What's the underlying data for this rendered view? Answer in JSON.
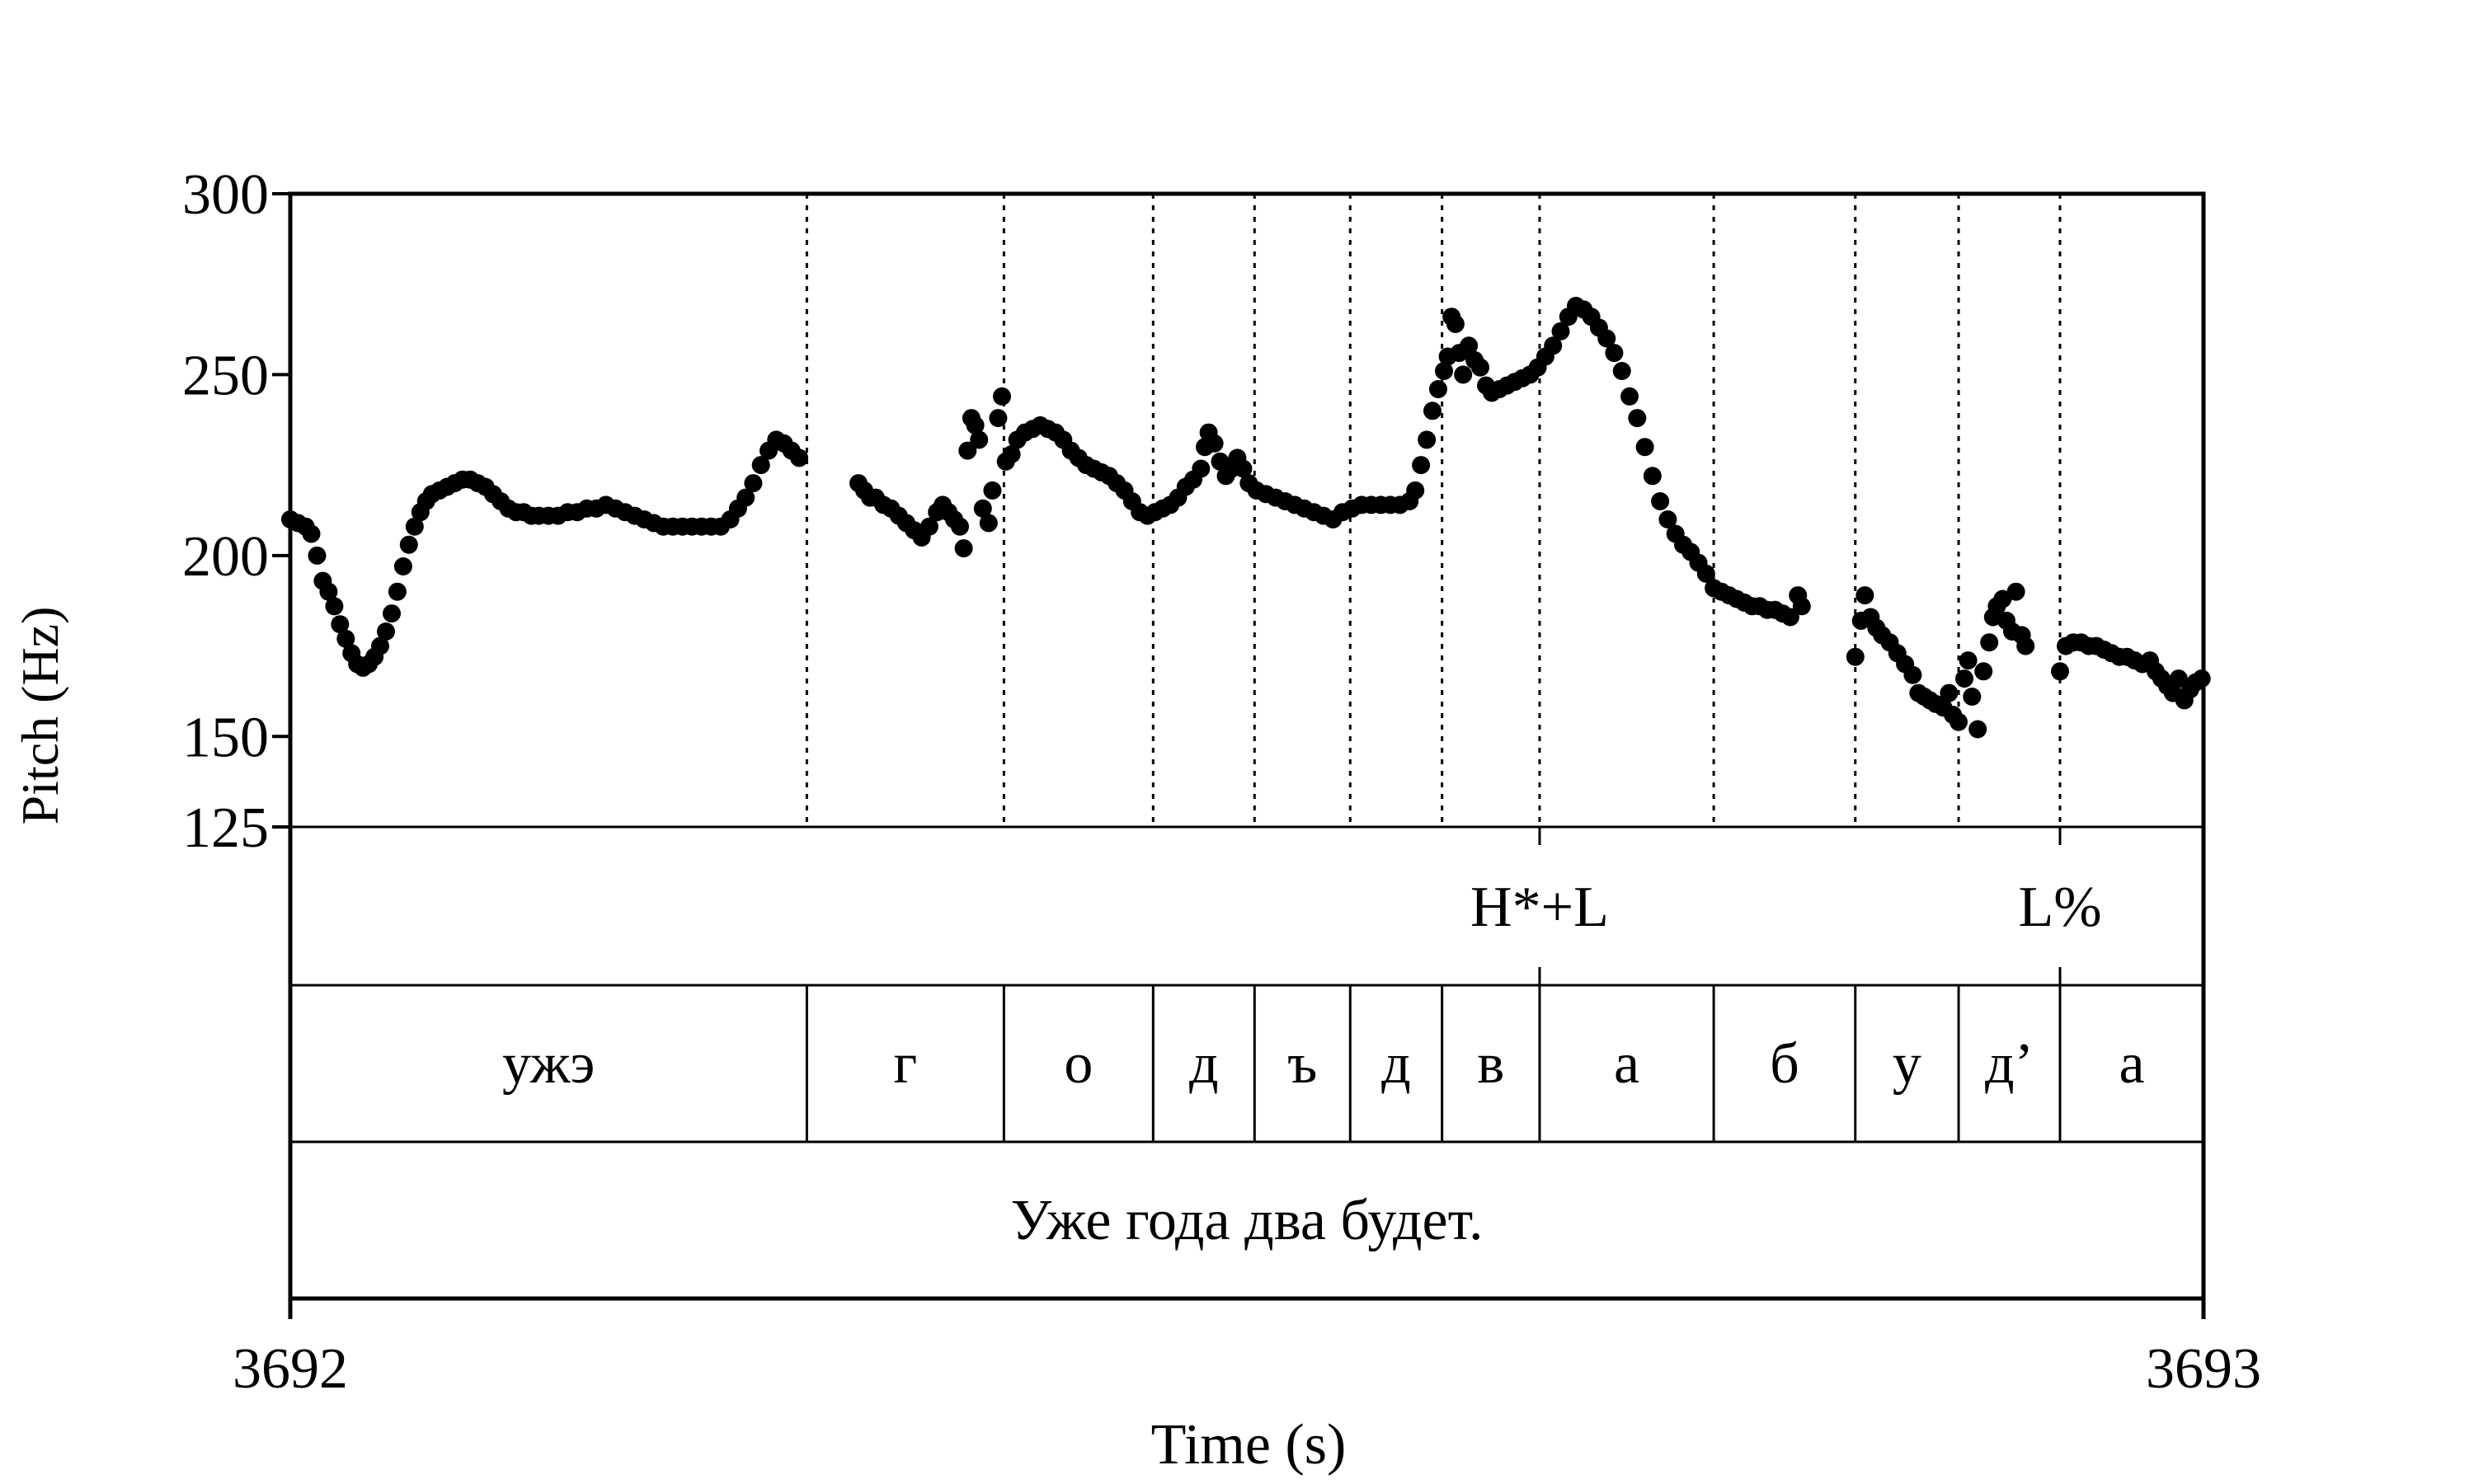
{
  "chart_data": {
    "type": "scatter",
    "title": "",
    "xlabel": "Time (s)",
    "ylabel": "Pitch (Hz)",
    "xlim": [
      3692,
      3693
    ],
    "ylim": [
      125,
      300
    ],
    "x_tick_labels": [
      "3692",
      "3693"
    ],
    "y_ticks": [
      125,
      150,
      200,
      250,
      300
    ],
    "y_tick_labels": [
      "125",
      "150",
      "200",
      "250",
      "300"
    ],
    "grid": false,
    "boundaries": [
      3692.27,
      3692.373,
      3692.451,
      3692.504,
      3692.554,
      3692.602,
      3692.653,
      3692.744,
      3692.818,
      3692.872,
      3692.925
    ],
    "tone_tier": [
      {
        "label": "H*+L",
        "time": 3692.653
      },
      {
        "label": "L%",
        "time": 3692.925
      }
    ],
    "segment_tier": [
      {
        "label": "ужэ",
        "start": 3692.0,
        "end": 3692.27
      },
      {
        "label": "г",
        "start": 3692.27,
        "end": 3692.373
      },
      {
        "label": "о",
        "start": 3692.373,
        "end": 3692.451
      },
      {
        "label": "д",
        "start": 3692.451,
        "end": 3692.504
      },
      {
        "label": "ъ",
        "start": 3692.504,
        "end": 3692.554
      },
      {
        "label": "д",
        "start": 3692.554,
        "end": 3692.602
      },
      {
        "label": "в",
        "start": 3692.602,
        "end": 3692.653
      },
      {
        "label": "а",
        "start": 3692.653,
        "end": 3692.744
      },
      {
        "label": "б",
        "start": 3692.744,
        "end": 3692.818
      },
      {
        "label": "у",
        "start": 3692.818,
        "end": 3692.872
      },
      {
        "label": "д’",
        "start": 3692.872,
        "end": 3692.925
      },
      {
        "label": "а",
        "start": 3692.925,
        "end": 3693.0
      }
    ],
    "sentence_tier": [
      {
        "label": "Уже года два будет.",
        "start": 3692.0,
        "end": 3693.0
      }
    ],
    "series": [
      {
        "values": [
          [
            3692.0,
            210
          ],
          [
            3692.004,
            209
          ],
          [
            3692.008,
            208
          ],
          [
            3692.011,
            206
          ],
          [
            3692.014,
            200
          ],
          [
            3692.017,
            193
          ],
          [
            3692.02,
            190
          ],
          [
            3692.023,
            186
          ],
          [
            3692.026,
            181
          ],
          [
            3692.029,
            177
          ],
          [
            3692.032,
            173
          ],
          [
            3692.035,
            170
          ],
          [
            3692.038,
            169
          ],
          [
            3692.041,
            170
          ],
          [
            3692.044,
            172
          ],
          [
            3692.047,
            175
          ],
          [
            3692.05,
            179
          ],
          [
            3692.053,
            184
          ],
          [
            3692.056,
            190
          ],
          [
            3692.059,
            197
          ],
          [
            3692.062,
            203
          ],
          [
            3692.065,
            208
          ],
          [
            3692.068,
            212
          ],
          [
            3692.071,
            215
          ],
          [
            3692.074,
            217
          ],
          [
            3692.078,
            218
          ],
          [
            3692.082,
            219
          ],
          [
            3692.086,
            220
          ],
          [
            3692.09,
            221
          ],
          [
            3692.094,
            221
          ],
          [
            3692.098,
            220
          ],
          [
            3692.102,
            219
          ],
          [
            3692.106,
            217
          ],
          [
            3692.11,
            215
          ],
          [
            3692.114,
            213
          ],
          [
            3692.118,
            212
          ],
          [
            3692.122,
            212
          ],
          [
            3692.126,
            211
          ],
          [
            3692.13,
            211
          ],
          [
            3692.135,
            211
          ],
          [
            3692.14,
            211
          ],
          [
            3692.145,
            212
          ],
          [
            3692.15,
            212
          ],
          [
            3692.155,
            213
          ],
          [
            3692.16,
            213
          ],
          [
            3692.165,
            214
          ],
          [
            3692.17,
            213
          ],
          [
            3692.175,
            212
          ],
          [
            3692.18,
            211
          ],
          [
            3692.185,
            210
          ],
          [
            3692.19,
            209
          ],
          [
            3692.195,
            208
          ],
          [
            3692.2,
            208
          ],
          [
            3692.205,
            208
          ],
          [
            3692.21,
            208
          ],
          [
            3692.215,
            208
          ],
          [
            3692.22,
            208
          ],
          [
            3692.225,
            208
          ],
          [
            3692.23,
            210
          ],
          [
            3692.234,
            213
          ],
          [
            3692.238,
            216
          ],
          [
            3692.242,
            220
          ],
          [
            3692.246,
            225
          ],
          [
            3692.25,
            229
          ],
          [
            3692.254,
            232
          ],
          [
            3692.258,
            231
          ],
          [
            3692.262,
            229
          ],
          [
            3692.266,
            227
          ],
          [
            3692.297,
            220
          ],
          [
            3692.3,
            218
          ],
          [
            3692.303,
            216
          ],
          [
            3692.306,
            216
          ],
          [
            3692.31,
            214
          ],
          [
            3692.314,
            213
          ],
          [
            3692.318,
            211
          ],
          [
            3692.322,
            209
          ],
          [
            3692.326,
            207
          ],
          [
            3692.33,
            205
          ],
          [
            3692.334,
            208
          ],
          [
            3692.338,
            212
          ],
          [
            3692.341,
            214
          ],
          [
            3692.344,
            212
          ],
          [
            3692.347,
            210
          ],
          [
            3692.35,
            208
          ],
          [
            3692.352,
            202
          ],
          [
            3692.354,
            229
          ],
          [
            3692.356,
            238
          ],
          [
            3692.358,
            236
          ],
          [
            3692.36,
            232
          ],
          [
            3692.362,
            213
          ],
          [
            3692.365,
            209
          ],
          [
            3692.367,
            218
          ],
          [
            3692.37,
            238
          ],
          [
            3692.372,
            244
          ],
          [
            3692.374,
            226
          ],
          [
            3692.377,
            228
          ],
          [
            3692.38,
            232
          ],
          [
            3692.384,
            234
          ],
          [
            3692.388,
            235
          ],
          [
            3692.392,
            236
          ],
          [
            3692.396,
            235
          ],
          [
            3692.4,
            234
          ],
          [
            3692.404,
            232
          ],
          [
            3692.408,
            229
          ],
          [
            3692.412,
            227
          ],
          [
            3692.416,
            225
          ],
          [
            3692.42,
            224
          ],
          [
            3692.424,
            223
          ],
          [
            3692.428,
            222
          ],
          [
            3692.432,
            220
          ],
          [
            3692.436,
            218
          ],
          [
            3692.44,
            215
          ],
          [
            3692.444,
            212
          ],
          [
            3692.448,
            211
          ],
          [
            3692.452,
            212
          ],
          [
            3692.456,
            213
          ],
          [
            3692.46,
            214
          ],
          [
            3692.464,
            216
          ],
          [
            3692.468,
            219
          ],
          [
            3692.472,
            221
          ],
          [
            3692.476,
            224
          ],
          [
            3692.478,
            230
          ],
          [
            3692.48,
            234
          ],
          [
            3692.483,
            231
          ],
          [
            3692.486,
            226
          ],
          [
            3692.489,
            222
          ],
          [
            3692.492,
            224
          ],
          [
            3692.495,
            227
          ],
          [
            3692.498,
            224
          ],
          [
            3692.501,
            220
          ],
          [
            3692.505,
            218
          ],
          [
            3692.51,
            217
          ],
          [
            3692.515,
            216
          ],
          [
            3692.52,
            215
          ],
          [
            3692.525,
            214
          ],
          [
            3692.53,
            213
          ],
          [
            3692.535,
            212
          ],
          [
            3692.54,
            211
          ],
          [
            3692.545,
            210
          ],
          [
            3692.55,
            212
          ],
          [
            3692.555,
            213
          ],
          [
            3692.56,
            214
          ],
          [
            3692.565,
            214
          ],
          [
            3692.57,
            214
          ],
          [
            3692.575,
            214
          ],
          [
            3692.58,
            214
          ],
          [
            3692.585,
            215
          ],
          [
            3692.588,
            218
          ],
          [
            3692.591,
            225
          ],
          [
            3692.594,
            232
          ],
          [
            3692.597,
            240
          ],
          [
            3692.6,
            246
          ],
          [
            3692.603,
            251
          ],
          [
            3692.605,
            255
          ],
          [
            3692.607,
            266
          ],
          [
            3692.609,
            264
          ],
          [
            3692.611,
            256
          ],
          [
            3692.613,
            250
          ],
          [
            3692.616,
            258
          ],
          [
            3692.619,
            254
          ],
          [
            3692.622,
            252
          ],
          [
            3692.625,
            247
          ],
          [
            3692.628,
            245
          ],
          [
            3692.632,
            246
          ],
          [
            3692.636,
            247
          ],
          [
            3692.64,
            248
          ],
          [
            3692.644,
            249
          ],
          [
            3692.648,
            250
          ],
          [
            3692.652,
            252
          ],
          [
            3692.656,
            255
          ],
          [
            3692.66,
            258
          ],
          [
            3692.664,
            262
          ],
          [
            3692.668,
            266
          ],
          [
            3692.672,
            269
          ],
          [
            3692.676,
            268
          ],
          [
            3692.68,
            266
          ],
          [
            3692.684,
            263
          ],
          [
            3692.688,
            260
          ],
          [
            3692.692,
            256
          ],
          [
            3692.696,
            251
          ],
          [
            3692.7,
            244
          ],
          [
            3692.704,
            238
          ],
          [
            3692.708,
            230
          ],
          [
            3692.712,
            222
          ],
          [
            3692.716,
            215
          ],
          [
            3692.72,
            210
          ],
          [
            3692.724,
            206
          ],
          [
            3692.728,
            203
          ],
          [
            3692.732,
            201
          ],
          [
            3692.736,
            198
          ],
          [
            3692.74,
            195
          ],
          [
            3692.744,
            191
          ],
          [
            3692.748,
            190
          ],
          [
            3692.752,
            189
          ],
          [
            3692.756,
            188
          ],
          [
            3692.76,
            187
          ],
          [
            3692.764,
            186
          ],
          [
            3692.768,
            186
          ],
          [
            3692.772,
            185
          ],
          [
            3692.776,
            185
          ],
          [
            3692.78,
            184
          ],
          [
            3692.784,
            183
          ],
          [
            3692.788,
            189
          ],
          [
            3692.79,
            186
          ],
          [
            3692.818,
            172
          ],
          [
            3692.821,
            182
          ],
          [
            3692.823,
            189
          ],
          [
            3692.826,
            183
          ],
          [
            3692.829,
            180
          ],
          [
            3692.832,
            178
          ],
          [
            3692.836,
            176
          ],
          [
            3692.84,
            173
          ],
          [
            3692.844,
            170
          ],
          [
            3692.848,
            167
          ],
          [
            3692.851,
            162
          ],
          [
            3692.854,
            161
          ],
          [
            3692.857,
            160
          ],
          [
            3692.86,
            159
          ],
          [
            3692.864,
            158
          ],
          [
            3692.867,
            162
          ],
          [
            3692.869,
            156
          ],
          [
            3692.872,
            154
          ],
          [
            3692.875,
            166
          ],
          [
            3692.877,
            171
          ],
          [
            3692.879,
            161
          ],
          [
            3692.882,
            152
          ],
          [
            3692.885,
            168
          ],
          [
            3692.888,
            176
          ],
          [
            3692.89,
            183
          ],
          [
            3692.892,
            186
          ],
          [
            3692.895,
            188
          ],
          [
            3692.897,
            182
          ],
          [
            3692.9,
            179
          ],
          [
            3692.902,
            190
          ],
          [
            3692.905,
            178
          ],
          [
            3692.907,
            175
          ],
          [
            3692.925,
            168
          ],
          [
            3692.928,
            175
          ],
          [
            3692.932,
            176
          ],
          [
            3692.936,
            176
          ],
          [
            3692.94,
            175
          ],
          [
            3692.944,
            175
          ],
          [
            3692.948,
            174
          ],
          [
            3692.952,
            173
          ],
          [
            3692.956,
            172
          ],
          [
            3692.96,
            172
          ],
          [
            3692.964,
            171
          ],
          [
            3692.968,
            170
          ],
          [
            3692.972,
            171
          ],
          [
            3692.975,
            168
          ],
          [
            3692.978,
            166
          ],
          [
            3692.981,
            164
          ],
          [
            3692.984,
            162
          ],
          [
            3692.987,
            166
          ],
          [
            3692.99,
            160
          ],
          [
            3692.993,
            163
          ],
          [
            3692.996,
            165
          ],
          [
            3692.999,
            166
          ]
        ]
      }
    ]
  }
}
